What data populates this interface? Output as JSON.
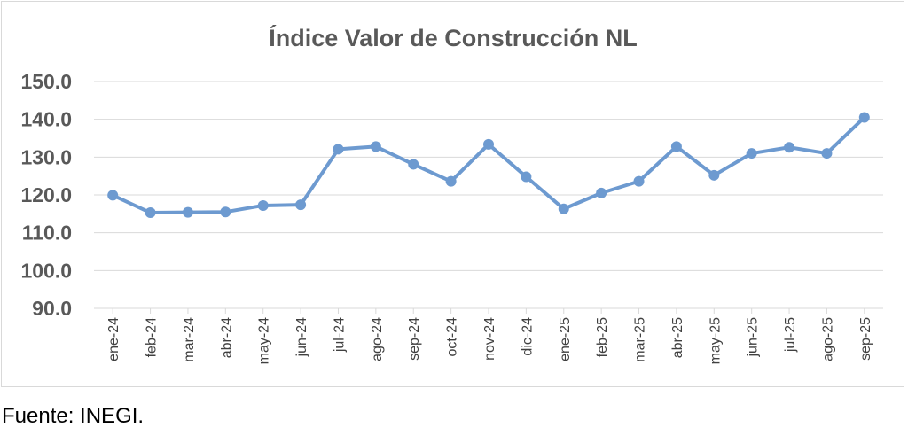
{
  "chart_data": {
    "type": "line",
    "title": "Índice Valor de Construcción NL",
    "xlabel": "",
    "ylabel": "",
    "categories": [
      "ene-24",
      "feb-24",
      "mar-24",
      "abr-24",
      "may-24",
      "jun-24",
      "jul-24",
      "ago-24",
      "sep-24",
      "oct-24",
      "nov-24",
      "dic-24",
      "ene-25",
      "feb-25",
      "mar-25",
      "abr-25",
      "may-25",
      "jun-25",
      "jul-25",
      "ago-25",
      "sep-25"
    ],
    "series": [
      {
        "values": [
          119.9,
          115.3,
          115.4,
          115.5,
          117.2,
          117.4,
          132.1,
          132.8,
          128.1,
          123.6,
          133.4,
          124.8,
          116.3,
          120.5,
          123.6,
          132.8,
          125.2,
          131.0,
          132.6,
          131.0,
          140.5
        ]
      }
    ],
    "ylim": [
      90,
      150
    ],
    "yticks": [
      "90.0",
      "100.0",
      "110.0",
      "120.0",
      "130.0",
      "140.0",
      "150.0"
    ],
    "grid": true,
    "legend": "none",
    "colors": {
      "line": "#6d9ad0",
      "grid": "#d9d9d9",
      "title": "#595959",
      "ticks": "#595959"
    }
  },
  "footer": {
    "source": "Fuente: INEGI."
  }
}
